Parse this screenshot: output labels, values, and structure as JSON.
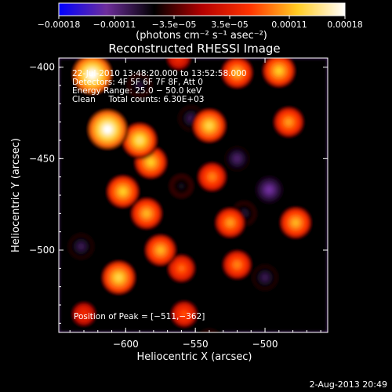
{
  "chart_data": {
    "type": "heatmap",
    "title": "Reconstructed RHESSI Image",
    "xlabel": "Heliocentric X (arcsec)",
    "ylabel": "Heliocentric Y (arcsec)",
    "xlim": [
      -648,
      -541
    ],
    "ylim": [
      -545,
      -395
    ],
    "x_ticks": [
      -600,
      -550,
      -500
    ],
    "x_tick_labels": [
      "−600",
      "−550",
      "−500"
    ],
    "y_ticks": [
      -400,
      -450,
      -500
    ],
    "y_tick_labels": [
      "−400",
      "−450",
      "−500"
    ],
    "colorbar": {
      "range": [
        -0.00018,
        0.00018
      ],
      "ticks": [
        -0.00018,
        -0.00011,
        -3.5e-05,
        3.5e-05,
        0.00011,
        0.00018
      ],
      "tick_labels": [
        "−0.00018",
        "−0.00011",
        "−3.5e−05",
        "3.5e−05",
        "0.00011",
        "0.00018"
      ],
      "unit_label": "(photons cm⁻² s⁻¹ asec⁻²)",
      "colormap": [
        "#0000ff",
        "#6e2e9c",
        "#000000",
        "#b40000",
        "#ff3300",
        "#ffcc22",
        "#ffffff"
      ]
    },
    "annotations": {
      "time_range": "22-Jul-2010 13:48:20.000 to 13:52:58.000",
      "detectors": "Detectors: 4F 5F 6F 7F 8F, Att 0",
      "energy_range": "Energy Range: 25.0 − 50.0 keV",
      "clean_counts": "Clean     Total counts: 6.30E+03",
      "peak_position": "Position of Peak = [−511,−362]"
    },
    "blobs": [
      {
        "x": -624,
        "y": -404,
        "v": 0.00018
      },
      {
        "x": -613,
        "y": -434,
        "v": 0.00018
      },
      {
        "x": -590,
        "y": -440,
        "v": 0.00014
      },
      {
        "x": -582,
        "y": -452,
        "v": 0.00012
      },
      {
        "x": -602,
        "y": -468,
        "v": 0.00012
      },
      {
        "x": -585,
        "y": -480,
        "v": 0.00011
      },
      {
        "x": -605,
        "y": -515,
        "v": 0.00013
      },
      {
        "x": -575,
        "y": -500,
        "v": 0.00011
      },
      {
        "x": -540,
        "y": -432,
        "v": 0.00013
      },
      {
        "x": -538,
        "y": -460,
        "v": 9e-05
      },
      {
        "x": -520,
        "y": -403,
        "v": 0.00011
      },
      {
        "x": -490,
        "y": -402,
        "v": 0.00012
      },
      {
        "x": -483,
        "y": -430,
        "v": 0.0001
      },
      {
        "x": -478,
        "y": -485,
        "v": 0.00011
      },
      {
        "x": -525,
        "y": -485,
        "v": 0.0001
      },
      {
        "x": -560,
        "y": -510,
        "v": 8e-05
      },
      {
        "x": -520,
        "y": -508,
        "v": 9e-05
      },
      {
        "x": -558,
        "y": -535,
        "v": 7e-05
      },
      {
        "x": -630,
        "y": -535,
        "v": 5e-05
      },
      {
        "x": -562,
        "y": -395,
        "v": 5e-05
      },
      {
        "x": -553,
        "y": -428,
        "v": -9e-05
      },
      {
        "x": -520,
        "y": -450,
        "v": -0.0001
      },
      {
        "x": -497,
        "y": -467,
        "v": -0.00012
      },
      {
        "x": -515,
        "y": -480,
        "v": -8e-05
      },
      {
        "x": -632,
        "y": -498,
        "v": -9e-05
      },
      {
        "x": -560,
        "y": -465,
        "v": -7e-05
      },
      {
        "x": -590,
        "y": -410,
        "v": -8e-05
      },
      {
        "x": -500,
        "y": -515,
        "v": -9e-05
      },
      {
        "x": -540,
        "y": -550,
        "v": -8e-05
      }
    ],
    "baseline": -6e-05
  },
  "footer": {
    "timestamp": "2-Aug-2013 20:49"
  }
}
